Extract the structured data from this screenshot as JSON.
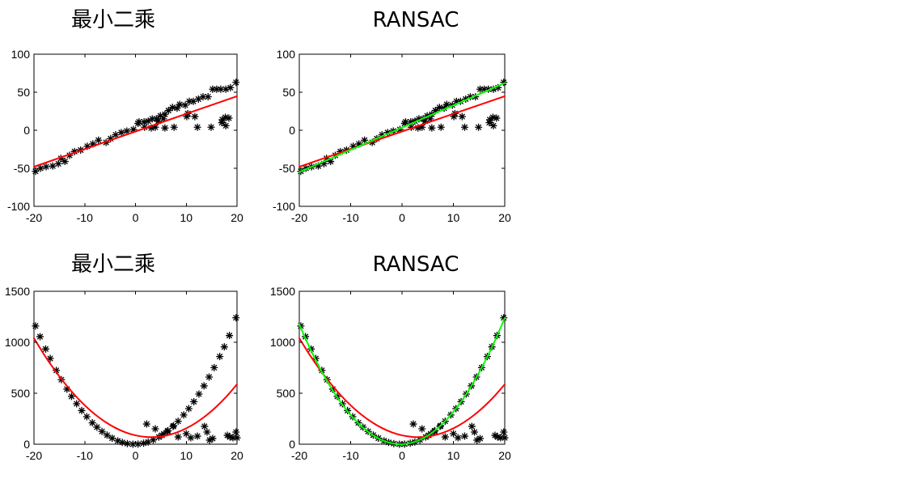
{
  "chart_data": [
    {
      "type": "scatter",
      "title": "最小二乘",
      "xlim": [
        -20,
        20
      ],
      "ylim": [
        -100,
        100
      ],
      "xticks": [
        -20,
        -10,
        0,
        10,
        20
      ],
      "yticks": [
        -100,
        -50,
        0,
        50,
        100
      ],
      "grid": false,
      "point_color": "#000000",
      "points": [
        [
          -19.7,
          -54
        ],
        [
          -18.7,
          -50
        ],
        [
          -17.6,
          -48
        ],
        [
          -16.3,
          -47
        ],
        [
          -15.2,
          -44
        ],
        [
          -14.7,
          -37
        ],
        [
          -13.9,
          -41
        ],
        [
          -13.0,
          -33
        ],
        [
          -12.0,
          -28
        ],
        [
          -10.8,
          -26
        ],
        [
          -9.5,
          -21
        ],
        [
          -8.4,
          -18
        ],
        [
          -7.3,
          -13
        ],
        [
          -5.8,
          -16
        ],
        [
          -4.9,
          -11
        ],
        [
          -3.9,
          -6
        ],
        [
          -2.8,
          -3
        ],
        [
          -1.7,
          -1
        ],
        [
          -0.4,
          1
        ],
        [
          0.7,
          11
        ],
        [
          1.7,
          11
        ],
        [
          2.5,
          12
        ],
        [
          3.3,
          15
        ],
        [
          4.1,
          15
        ],
        [
          4.9,
          19
        ],
        [
          5.8,
          21
        ],
        [
          6.5,
          26
        ],
        [
          7.3,
          30
        ],
        [
          8.2,
          29
        ],
        [
          8.7,
          34
        ],
        [
          9.8,
          33
        ],
        [
          10.6,
          38
        ],
        [
          11.4,
          38
        ],
        [
          12.4,
          41
        ],
        [
          13.3,
          44
        ],
        [
          14.3,
          44
        ],
        [
          15.2,
          54
        ],
        [
          16.0,
          54
        ],
        [
          16.8,
          54
        ],
        [
          17.8,
          54
        ],
        [
          18.7,
          56
        ],
        [
          19.8,
          63
        ],
        [
          0.5,
          9
        ],
        [
          1.8,
          4
        ],
        [
          3.1,
          3
        ],
        [
          3.9,
          4
        ],
        [
          4.5,
          12
        ],
        [
          5.5,
          15
        ],
        [
          5.8,
          3
        ],
        [
          7.6,
          4
        ],
        [
          10.1,
          18
        ],
        [
          10.3,
          22
        ],
        [
          11.7,
          18
        ],
        [
          12.2,
          4
        ],
        [
          14.9,
          4
        ],
        [
          17.0,
          10
        ],
        [
          17.1,
          14
        ],
        [
          17.7,
          17
        ],
        [
          18.4,
          16
        ],
        [
          17.8,
          6
        ]
      ],
      "fits": {
        "least_squares": {
          "color": "#ff0000",
          "x": [
            -20,
            20
          ],
          "y": [
            -48,
            44.8
          ]
        }
      }
    },
    {
      "type": "scatter",
      "title": "RANSAC",
      "xlim": [
        -20,
        20
      ],
      "ylim": [
        -100,
        100
      ],
      "xticks": [
        -20,
        -10,
        0,
        10,
        20
      ],
      "yticks": [
        -100,
        -50,
        0,
        50,
        100
      ],
      "grid": false,
      "point_color": "#000000",
      "points": [
        [
          -19.7,
          -54
        ],
        [
          -18.7,
          -50
        ],
        [
          -17.6,
          -48
        ],
        [
          -16.3,
          -47
        ],
        [
          -15.2,
          -44
        ],
        [
          -14.7,
          -37
        ],
        [
          -13.9,
          -41
        ],
        [
          -13.0,
          -33
        ],
        [
          -12.0,
          -28
        ],
        [
          -10.8,
          -26
        ],
        [
          -9.5,
          -21
        ],
        [
          -8.4,
          -18
        ],
        [
          -7.3,
          -13
        ],
        [
          -5.8,
          -16
        ],
        [
          -4.9,
          -11
        ],
        [
          -3.9,
          -6
        ],
        [
          -2.8,
          -3
        ],
        [
          -1.7,
          -1
        ],
        [
          -0.4,
          1
        ],
        [
          0.7,
          11
        ],
        [
          1.7,
          11
        ],
        [
          2.5,
          12
        ],
        [
          3.3,
          15
        ],
        [
          4.1,
          15
        ],
        [
          4.9,
          19
        ],
        [
          5.8,
          21
        ],
        [
          6.5,
          26
        ],
        [
          7.3,
          30
        ],
        [
          8.2,
          29
        ],
        [
          8.7,
          34
        ],
        [
          9.8,
          33
        ],
        [
          10.6,
          38
        ],
        [
          11.4,
          38
        ],
        [
          12.4,
          41
        ],
        [
          13.3,
          44
        ],
        [
          14.3,
          44
        ],
        [
          15.2,
          54
        ],
        [
          16.0,
          54
        ],
        [
          16.8,
          54
        ],
        [
          17.8,
          54
        ],
        [
          18.7,
          56
        ],
        [
          19.8,
          63
        ],
        [
          0.5,
          9
        ],
        [
          1.8,
          4
        ],
        [
          3.1,
          3
        ],
        [
          3.9,
          4
        ],
        [
          4.5,
          12
        ],
        [
          5.5,
          15
        ],
        [
          5.8,
          3
        ],
        [
          7.6,
          4
        ],
        [
          10.1,
          18
        ],
        [
          10.3,
          22
        ],
        [
          11.7,
          18
        ],
        [
          12.2,
          4
        ],
        [
          14.9,
          4
        ],
        [
          17.0,
          10
        ],
        [
          17.1,
          14
        ],
        [
          17.7,
          17
        ],
        [
          18.4,
          16
        ],
        [
          17.8,
          6
        ]
      ],
      "fits": {
        "least_squares": {
          "color": "#ff0000",
          "x": [
            -20,
            20
          ],
          "y": [
            -48,
            44.8
          ]
        },
        "ransac": {
          "color": "#00ff00",
          "x": [
            -20,
            20
          ],
          "y": [
            -55,
            62
          ]
        }
      }
    },
    {
      "type": "scatter",
      "title": "最小二乘",
      "xlim": [
        -20,
        20
      ],
      "ylim": [
        0,
        1500
      ],
      "xticks": [
        -20,
        -10,
        0,
        10,
        20
      ],
      "yticks": [
        0,
        500,
        1000,
        1500
      ],
      "grid": false,
      "point_color": "#000000",
      "points": [
        [
          -19.7,
          1160
        ],
        [
          -18.8,
          1055
        ],
        [
          -17.7,
          934
        ],
        [
          -16.8,
          841
        ],
        [
          -15.6,
          724
        ],
        [
          -14.6,
          633
        ],
        [
          -13.5,
          540
        ],
        [
          -12.6,
          469
        ],
        [
          -11.6,
          397
        ],
        [
          -10.6,
          330
        ],
        [
          -9.6,
          270
        ],
        [
          -8.5,
          210
        ],
        [
          -7.6,
          167
        ],
        [
          -6.6,
          125
        ],
        [
          -5.6,
          89
        ],
        [
          -4.6,
          59
        ],
        [
          -3.5,
          33
        ],
        [
          -2.6,
          18
        ],
        [
          -1.6,
          6
        ],
        [
          -0.5,
          0
        ],
        [
          0.5,
          1
        ],
        [
          1.6,
          10
        ],
        [
          2.5,
          22
        ],
        [
          3.5,
          42
        ],
        [
          4.6,
          70
        ],
        [
          5.6,
          102
        ],
        [
          6.4,
          133
        ],
        [
          7.5,
          181
        ],
        [
          8.4,
          225
        ],
        [
          9.5,
          287
        ],
        [
          10.5,
          349
        ],
        [
          11.5,
          417
        ],
        [
          12.5,
          492
        ],
        [
          13.5,
          572
        ],
        [
          14.5,
          659
        ],
        [
          15.5,
          751
        ],
        [
          16.6,
          860
        ],
        [
          17.5,
          955
        ],
        [
          18.5,
          1066
        ],
        [
          19.8,
          1240
        ],
        [
          2.2,
          198
        ],
        [
          3.9,
          151
        ],
        [
          5.2,
          87
        ],
        [
          6.3,
          127
        ],
        [
          7.4,
          175
        ],
        [
          8.4,
          71
        ],
        [
          10.0,
          103
        ],
        [
          10.9,
          63
        ],
        [
          12.2,
          79
        ],
        [
          13.6,
          175
        ],
        [
          14.1,
          119
        ],
        [
          14.6,
          40
        ],
        [
          15.2,
          56
        ],
        [
          18.1,
          87
        ],
        [
          18.6,
          71
        ],
        [
          19.2,
          63
        ],
        [
          19.8,
          119
        ],
        [
          20.0,
          63
        ]
      ],
      "fits": {
        "least_squares": {
          "color": "#ff0000",
          "x": [
            -20,
            -18,
            -16,
            -14,
            -12,
            -10,
            -8,
            -6,
            -4,
            -2,
            0,
            2,
            4,
            6,
            8,
            10,
            12,
            14,
            16,
            18,
            20
          ],
          "y": [
            1039.4,
            878.8,
            732.7,
            601.1,
            484.1,
            381.6,
            293.6,
            220.2,
            161.3,
            116.9,
            87,
            71.7,
            70.9,
            84.6,
            112.8,
            155.6,
            212.9,
            284.7,
            371.1,
            472,
            587.4
          ]
        }
      }
    },
    {
      "type": "scatter",
      "title": "RANSAC",
      "xlim": [
        -20,
        20
      ],
      "ylim": [
        0,
        1500
      ],
      "xticks": [
        -20,
        -10,
        0,
        10,
        20
      ],
      "yticks": [
        0,
        500,
        1000,
        1500
      ],
      "grid": false,
      "point_color": "#000000",
      "points": [
        [
          -19.7,
          1160
        ],
        [
          -18.8,
          1055
        ],
        [
          -17.7,
          934
        ],
        [
          -16.8,
          841
        ],
        [
          -15.6,
          724
        ],
        [
          -14.6,
          633
        ],
        [
          -13.5,
          540
        ],
        [
          -12.6,
          469
        ],
        [
          -11.6,
          397
        ],
        [
          -10.6,
          330
        ],
        [
          -9.6,
          270
        ],
        [
          -8.5,
          210
        ],
        [
          -7.6,
          167
        ],
        [
          -6.6,
          125
        ],
        [
          -5.6,
          89
        ],
        [
          -4.6,
          59
        ],
        [
          -3.5,
          33
        ],
        [
          -2.6,
          18
        ],
        [
          -1.6,
          6
        ],
        [
          -0.5,
          0
        ],
        [
          0.5,
          1
        ],
        [
          1.6,
          10
        ],
        [
          2.5,
          22
        ],
        [
          3.5,
          42
        ],
        [
          4.6,
          70
        ],
        [
          5.6,
          102
        ],
        [
          6.4,
          133
        ],
        [
          7.5,
          181
        ],
        [
          8.4,
          225
        ],
        [
          9.5,
          287
        ],
        [
          10.5,
          349
        ],
        [
          11.5,
          417
        ],
        [
          12.5,
          492
        ],
        [
          13.5,
          572
        ],
        [
          14.5,
          659
        ],
        [
          15.5,
          751
        ],
        [
          16.6,
          860
        ],
        [
          17.5,
          955
        ],
        [
          18.5,
          1066
        ],
        [
          19.8,
          1240
        ],
        [
          2.2,
          198
        ],
        [
          3.9,
          151
        ],
        [
          5.2,
          87
        ],
        [
          6.3,
          127
        ],
        [
          7.4,
          175
        ],
        [
          8.4,
          71
        ],
        [
          10.0,
          103
        ],
        [
          10.9,
          63
        ],
        [
          12.2,
          79
        ],
        [
          13.6,
          175
        ],
        [
          14.1,
          119
        ],
        [
          14.6,
          40
        ],
        [
          15.2,
          56
        ],
        [
          18.1,
          87
        ],
        [
          18.6,
          71
        ],
        [
          19.2,
          63
        ],
        [
          19.8,
          119
        ],
        [
          20.0,
          63
        ]
      ],
      "fits": {
        "least_squares": {
          "color": "#ff0000",
          "x": [
            -20,
            -18,
            -16,
            -14,
            -12,
            -10,
            -8,
            -6,
            -4,
            -2,
            0,
            2,
            4,
            6,
            8,
            10,
            12,
            14,
            16,
            18,
            20
          ],
          "y": [
            1039.4,
            878.8,
            732.7,
            601.1,
            484.1,
            381.6,
            293.6,
            220.2,
            161.3,
            116.9,
            87,
            71.7,
            70.9,
            84.6,
            112.8,
            155.6,
            212.9,
            284.7,
            371.1,
            472,
            587.4
          ]
        },
        "ransac": {
          "color": "#00ff00",
          "x": [
            -20,
            -18,
            -16,
            -14,
            -12,
            -10,
            -8,
            -6,
            -4,
            -2,
            0,
            2,
            4,
            6,
            8,
            10,
            12,
            14,
            16,
            18,
            20
          ],
          "y": [
            1174.9,
            948.8,
            746.9,
            569.1,
            415.4,
            285.9,
            180.4,
            99.1,
            42,
            8.9,
            0,
            15.2,
            54.6,
            118,
            205.6,
            317.4,
            453.2,
            613.1,
            797.3,
            1005.6,
            1237.9
          ]
        }
      }
    }
  ]
}
